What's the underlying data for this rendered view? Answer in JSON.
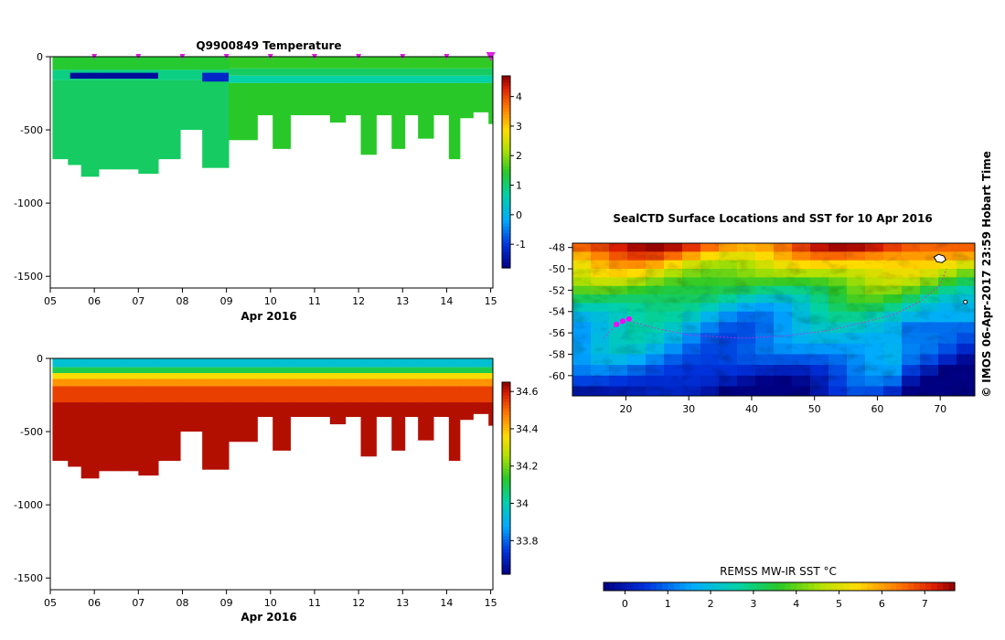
{
  "chart_data": [
    {
      "id": "temperature",
      "type": "heatmap",
      "title": "Q9900849  Temperature",
      "xlabel": "Apr 2016",
      "x_ticks": [
        "05",
        "06",
        "07",
        "08",
        "09",
        "10",
        "11",
        "12",
        "13",
        "14",
        "15"
      ],
      "xlim": [
        5,
        15.05
      ],
      "ylim": [
        -1580,
        0
      ],
      "y_ticks": [
        0,
        -500,
        -1000,
        -1500
      ],
      "y_tick_labels": [
        "0",
        "-500",
        "-1000",
        "-1500"
      ],
      "colorbar": {
        "min": -1.8,
        "max": 4.7,
        "ticks": [
          -1,
          0,
          1,
          2,
          3,
          4
        ],
        "tick_labels": [
          "-1",
          "0",
          "1",
          "2",
          "3",
          "4"
        ],
        "colormap": "rainbow"
      },
      "profile_markers": [
        6,
        7,
        8,
        9,
        10,
        11,
        12,
        13,
        14,
        15
      ],
      "profiles": [
        {
          "t0": 5.05,
          "t1": 5.4,
          "depth": 700
        },
        {
          "t0": 5.4,
          "t1": 5.7,
          "depth": 740
        },
        {
          "t0": 5.7,
          "t1": 6.1,
          "depth": 820
        },
        {
          "t0": 6.1,
          "t1": 6.6,
          "depth": 770
        },
        {
          "t0": 6.6,
          "t1": 7.0,
          "depth": 770
        },
        {
          "t0": 7.0,
          "t1": 7.45,
          "depth": 800
        },
        {
          "t0": 7.45,
          "t1": 7.95,
          "depth": 700
        },
        {
          "t0": 7.95,
          "t1": 8.45,
          "depth": 500
        },
        {
          "t0": 8.45,
          "t1": 9.05,
          "depth": 760
        },
        {
          "t0": 9.05,
          "t1": 9.7,
          "depth": 570
        },
        {
          "t0": 9.7,
          "t1": 10.05,
          "depth": 400
        },
        {
          "t0": 10.05,
          "t1": 10.45,
          "depth": 630
        },
        {
          "t0": 10.45,
          "t1": 10.95,
          "depth": 400
        },
        {
          "t0": 10.95,
          "t1": 11.35,
          "depth": 400
        },
        {
          "t0": 11.35,
          "t1": 11.7,
          "depth": 450
        },
        {
          "t0": 11.7,
          "t1": 12.05,
          "depth": 400
        },
        {
          "t0": 12.05,
          "t1": 12.4,
          "depth": 670
        },
        {
          "t0": 12.4,
          "t1": 12.75,
          "depth": 400
        },
        {
          "t0": 12.75,
          "t1": 13.05,
          "depth": 630
        },
        {
          "t0": 13.05,
          "t1": 13.35,
          "depth": 400
        },
        {
          "t0": 13.35,
          "t1": 13.7,
          "depth": 560
        },
        {
          "t0": 13.7,
          "t1": 14.05,
          "depth": 400
        },
        {
          "t0": 14.05,
          "t1": 14.3,
          "depth": 700
        },
        {
          "t0": 14.3,
          "t1": 14.6,
          "depth": 420
        },
        {
          "t0": 14.6,
          "t1": 14.95,
          "depth": 380
        },
        {
          "t0": 14.95,
          "t1": 15.05,
          "depth": 460
        }
      ],
      "layers_before_apr9": [
        {
          "d0": 0,
          "d1": 90,
          "value": 1.4
        },
        {
          "d0": 90,
          "d1": 160,
          "value": 0.9
        },
        {
          "d0": 160,
          "d1": 1600,
          "value": 1.1
        }
      ],
      "layers_after_apr9": [
        {
          "d0": 0,
          "d1": 80,
          "value": 1.5
        },
        {
          "d0": 80,
          "d1": 130,
          "value": 1.1
        },
        {
          "d0": 130,
          "d1": 180,
          "value": 0.7
        },
        {
          "d0": 180,
          "d1": 1600,
          "value": 1.45
        }
      ],
      "cold_core": [
        {
          "t0": 5.45,
          "t1": 7.45,
          "d0": 110,
          "d1": 150,
          "value": -1.6
        },
        {
          "t0": 8.45,
          "t1": 9.05,
          "d0": 110,
          "d1": 170,
          "value": -1.2
        }
      ]
    },
    {
      "id": "salinity",
      "type": "heatmap",
      "title": "",
      "xlabel": "Apr 2016",
      "x_ticks": [
        "05",
        "06",
        "07",
        "08",
        "09",
        "10",
        "11",
        "12",
        "13",
        "14",
        "15"
      ],
      "xlim": [
        5,
        15.05
      ],
      "ylim": [
        -1580,
        0
      ],
      "y_ticks": [
        0,
        -500,
        -1000,
        -1500
      ],
      "y_tick_labels": [
        "0",
        "-500",
        "-1000",
        "-1500"
      ],
      "colorbar": {
        "min": 33.62,
        "max": 34.65,
        "ticks": [
          33.8,
          34,
          34.2,
          34.4,
          34.6
        ],
        "tick_labels": [
          "33.8",
          "34",
          "34.2",
          "34.4",
          "34.6"
        ],
        "colormap": "rainbow"
      },
      "layers": [
        {
          "d0": 0,
          "d1": 60,
          "value": 33.95
        },
        {
          "d0": 60,
          "d1": 100,
          "value": 34.1
        },
        {
          "d0": 100,
          "d1": 140,
          "value": 34.35
        },
        {
          "d0": 140,
          "d1": 190,
          "value": 34.45
        },
        {
          "d0": 190,
          "d1": 300,
          "value": 34.55
        },
        {
          "d0": 300,
          "d1": 1600,
          "value": 34.62
        }
      ]
    },
    {
      "id": "sst-map",
      "type": "heatmap",
      "title": "SealCTD Surface Locations and SST for 10 Apr 2016",
      "x_ticks": [
        "20",
        "30",
        "40",
        "50",
        "60",
        "70"
      ],
      "xlim": [
        11.5,
        75.5
      ],
      "y_ticks": [
        "-48",
        "-50",
        "-52",
        "-54",
        "-56",
        "-58",
        "-60"
      ],
      "ylim": [
        -61.9,
        -47.6
      ],
      "colorbar": {
        "label": "REMSS MW-IR SST °C",
        "min": -0.5,
        "max": 7.7,
        "ticks": [
          0,
          1,
          2,
          3,
          4,
          5,
          6,
          7
        ],
        "tick_labels": [
          "0",
          "1",
          "2",
          "3",
          "4",
          "5",
          "6",
          "7"
        ],
        "colormap": "rainbow"
      },
      "track": [
        [
          16.5,
          -56.5
        ],
        [
          18,
          -55.5
        ],
        [
          20,
          -54.8
        ],
        [
          25,
          -55.6
        ],
        [
          30,
          -56.2
        ],
        [
          38,
          -56.5
        ],
        [
          45,
          -56.3
        ],
        [
          52,
          -55.8
        ],
        [
          58,
          -55.0
        ],
        [
          63,
          -54.2
        ],
        [
          67,
          -53.0
        ],
        [
          70,
          -51.5
        ],
        [
          71,
          -50.0
        ]
      ],
      "track_highlight": [
        [
          18.5,
          -55.2
        ],
        [
          19.5,
          -54.9
        ],
        [
          20.5,
          -54.7
        ]
      ]
    }
  ],
  "credit": "© IMOS 06-Apr-2017 23:59 Hobart Time"
}
